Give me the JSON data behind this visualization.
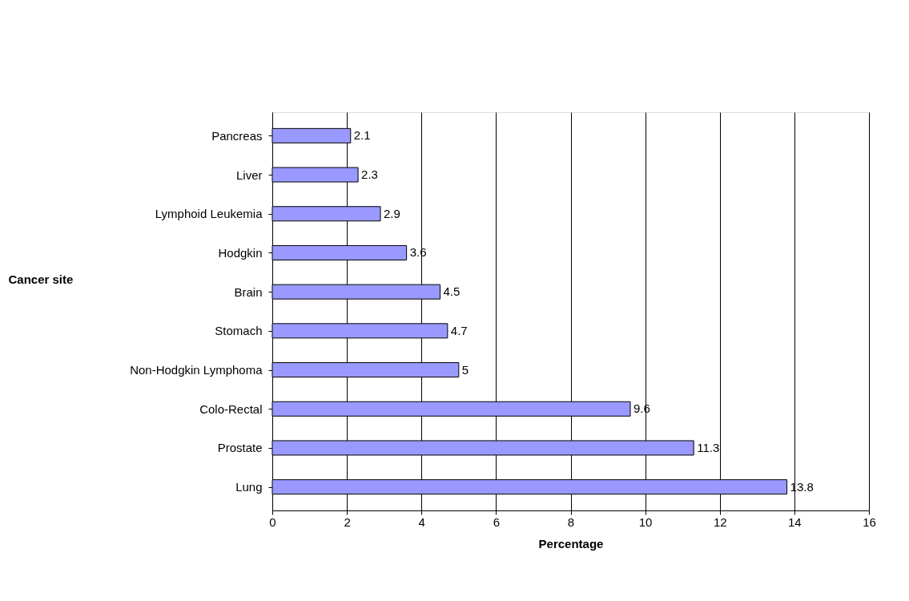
{
  "chart_data": {
    "type": "bar",
    "orientation": "horizontal",
    "xlabel": "Percentage",
    "ylabel": "Cancer site",
    "categories": [
      "Pancreas",
      "Liver",
      "Lymphoid Leukemia",
      "Hodgkin",
      "Brain",
      "Stomach",
      "Non-Hodgkin Lymphoma",
      "Colo-Rectal",
      "Prostate",
      "Lung"
    ],
    "values": [
      2.1,
      2.3,
      2.9,
      3.6,
      4.5,
      4.7,
      5,
      9.6,
      11.3,
      13.8
    ],
    "color": "#9999ff",
    "xlim": [
      0,
      16
    ],
    "xticks": [
      0,
      2,
      4,
      6,
      8,
      10,
      12,
      14,
      16
    ],
    "grid": "x",
    "data_labels": true
  }
}
